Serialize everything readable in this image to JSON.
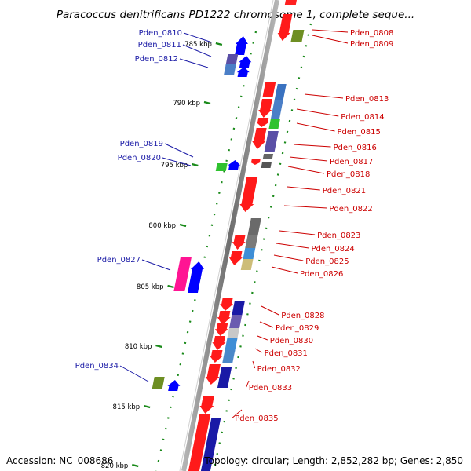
{
  "title": "Paracoccus denitrificans PD1222 chromosome 1, complete seque...",
  "footer": {
    "accession": "Accession: NC_008686",
    "topology": "Topology: circular; Length: 2,852,282 bp; Genes: 2,850"
  },
  "colors": {
    "forward_label": "#1a1aa6",
    "reverse_label": "#cc0000",
    "backbone": "#8c8c8c",
    "dotted_track": "#1a8a1a"
  },
  "ticks": [
    {
      "label": "785 kbp"
    },
    {
      "label": "790 kbp"
    },
    {
      "label": "795 kbp"
    },
    {
      "label": "800 kbp"
    },
    {
      "label": "805 kbp"
    },
    {
      "label": "810 kbp"
    },
    {
      "label": "815 kbp"
    },
    {
      "label": "820 kbp"
    }
  ],
  "forward_genes": [
    {
      "label": "Pden_0810"
    },
    {
      "label": "Pden_0811"
    },
    {
      "label": "Pden_0812"
    },
    {
      "label": "Pden_0819"
    },
    {
      "label": "Pden_0820"
    },
    {
      "label": "Pden_0827"
    },
    {
      "label": "Pden_0834"
    }
  ],
  "reverse_genes": [
    {
      "label": "Pden_0808"
    },
    {
      "label": "Pden_0809"
    },
    {
      "label": "Pden_0813"
    },
    {
      "label": "Pden_0814"
    },
    {
      "label": "Pden_0815"
    },
    {
      "label": "Pden_0816"
    },
    {
      "label": "Pden_0817"
    },
    {
      "label": "Pden_0818"
    },
    {
      "label": "Pden_0821"
    },
    {
      "label": "Pden_0822"
    },
    {
      "label": "Pden_0823"
    },
    {
      "label": "Pden_0824"
    },
    {
      "label": "Pden_0825"
    },
    {
      "label": "Pden_0826"
    },
    {
      "label": "Pden_0828"
    },
    {
      "label": "Pden_0829"
    },
    {
      "label": "Pden_0830"
    },
    {
      "label": "Pden_0831"
    },
    {
      "label": "Pden_0832"
    },
    {
      "label": "Pden_0833"
    },
    {
      "label": "Pden_0835"
    }
  ]
}
